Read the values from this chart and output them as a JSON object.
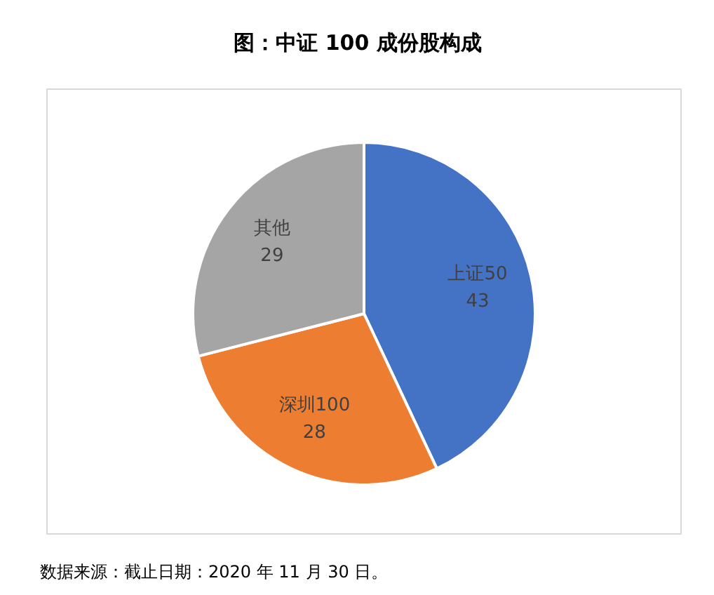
{
  "chart_data": {
    "type": "pie",
    "title": "图：中证 100 成份股构成",
    "categories": [
      "上证50",
      "深圳100",
      "其他"
    ],
    "values": [
      43,
      28,
      29
    ],
    "colors": [
      "#4472c4",
      "#ed7d31",
      "#a5a5a5"
    ],
    "data_labels": true,
    "annotations": [
      "数据来源：截止日期：2020 年 11 月 30 日。"
    ]
  }
}
